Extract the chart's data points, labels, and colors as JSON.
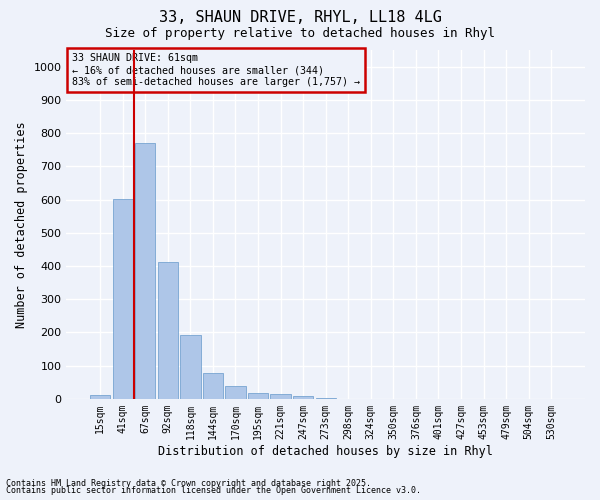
{
  "title_line1": "33, SHAUN DRIVE, RHYL, LL18 4LG",
  "title_line2": "Size of property relative to detached houses in Rhyl",
  "xlabel": "Distribution of detached houses by size in Rhyl",
  "ylabel": "Number of detached properties",
  "categories": [
    "15sqm",
    "41sqm",
    "67sqm",
    "92sqm",
    "118sqm",
    "144sqm",
    "170sqm",
    "195sqm",
    "221sqm",
    "247sqm",
    "273sqm",
    "298sqm",
    "324sqm",
    "350sqm",
    "376sqm",
    "401sqm",
    "427sqm",
    "453sqm",
    "479sqm",
    "504sqm",
    "530sqm"
  ],
  "values": [
    12,
    603,
    770,
    413,
    193,
    79,
    38,
    17,
    14,
    9,
    4,
    0,
    0,
    0,
    0,
    0,
    0,
    0,
    0,
    0,
    0
  ],
  "bar_color": "#aec6e8",
  "bar_edge_color": "#6699cc",
  "vline_color": "#cc0000",
  "annotation_title": "33 SHAUN DRIVE: 61sqm",
  "annotation_line2": "← 16% of detached houses are smaller (344)",
  "annotation_line3": "83% of semi-detached houses are larger (1,757) →",
  "annotation_box_color": "#cc0000",
  "ylim": [
    0,
    1050
  ],
  "yticks": [
    0,
    100,
    200,
    300,
    400,
    500,
    600,
    700,
    800,
    900,
    1000
  ],
  "background_color": "#eef2fa",
  "grid_color": "#ffffff",
  "footnote_line1": "Contains HM Land Registry data © Crown copyright and database right 2025.",
  "footnote_line2": "Contains public sector information licensed under the Open Government Licence v3.0."
}
